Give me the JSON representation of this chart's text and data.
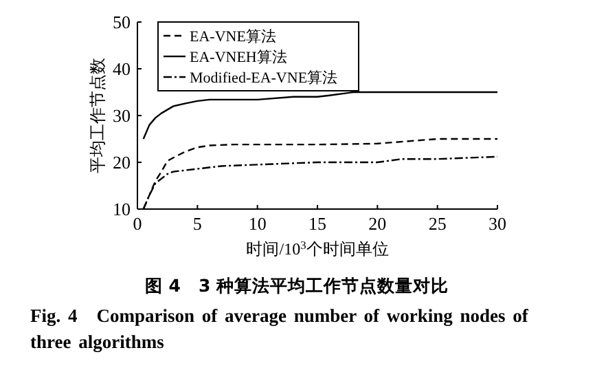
{
  "chart_data": {
    "type": "line",
    "title": "图 4　3 种算法平均工作节点数量对比",
    "subtitle": "Fig. 4　Comparison of average number of working nodes of three algorithms",
    "xlabel": "时间/10$^{3}$个时间单位",
    "ylabel": "平均工作节点数",
    "xlim": [
      0,
      30
    ],
    "ylim": [
      10,
      50
    ],
    "xticks": [
      0,
      5,
      10,
      15,
      20,
      25,
      30
    ],
    "yticks": [
      10,
      20,
      30,
      40,
      50
    ],
    "legend": "top left",
    "grid": false,
    "marker": "none",
    "series": [
      {
        "name": "EA-VNE算法",
        "color": "#000000",
        "line_style": "dashed",
        "x": [
          0.5,
          1,
          1.5,
          2,
          2.5,
          3,
          4,
          5,
          6,
          8,
          10,
          15,
          20,
          25,
          30
        ],
        "values": [
          10,
          13,
          16,
          18,
          20.3,
          21,
          22.3,
          23.2,
          23.6,
          23.8,
          23.8,
          23.8,
          24,
          25,
          25
        ]
      },
      {
        "name": "EA-VNEH算法",
        "color": "#000000",
        "line_style": "solid",
        "x": [
          0.5,
          1,
          1.5,
          2,
          3,
          4,
          5,
          6,
          10,
          13,
          15,
          16,
          18,
          20,
          30
        ],
        "values": [
          25,
          28,
          29.5,
          30.5,
          32,
          32.6,
          33.1,
          33.4,
          33.4,
          34,
          34,
          34.3,
          35,
          35,
          35
        ]
      },
      {
        "name": "Modified-EA-VNE算法",
        "color": "#000000",
        "line_style": "dashdot",
        "x": [
          0.5,
          1,
          1.5,
          2,
          2.5,
          3,
          5,
          7,
          10,
          15,
          20,
          22,
          25,
          30
        ],
        "values": [
          10,
          13,
          15.5,
          16.5,
          17.5,
          18,
          18.6,
          19.2,
          19.5,
          20,
          20,
          20.7,
          20.7,
          21.2
        ]
      }
    ]
  }
}
